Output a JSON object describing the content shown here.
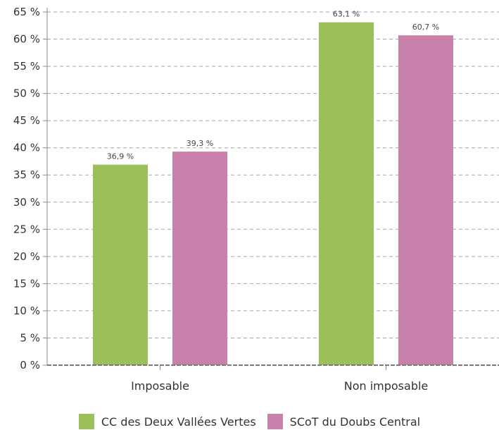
{
  "chart_data": {
    "type": "bar",
    "categories": [
      "Imposable",
      "Non imposable"
    ],
    "series": [
      {
        "name": "CC des Deux Vallées Vertes",
        "values": [
          36.9,
          63.1
        ],
        "color": "#9bbf5b",
        "labels": [
          "36,9 %",
          "63,1 %"
        ]
      },
      {
        "name": "SCoT du Doubs Central",
        "values": [
          39.3,
          60.7
        ],
        "color": "#c781aa",
        "labels": [
          "39,3 %",
          "60,7 %"
        ]
      }
    ],
    "ylim": [
      0,
      65
    ],
    "yticks": [
      0,
      5,
      10,
      15,
      20,
      25,
      30,
      35,
      40,
      45,
      50,
      55,
      60,
      65
    ],
    "ytick_labels": [
      "0 %",
      "5 %",
      "10 %",
      "15 %",
      "20 %",
      "25 %",
      "30 %",
      "35 %",
      "40 %",
      "45 %",
      "50 %",
      "55 %",
      "60 %",
      "65 %"
    ],
    "grid": "dashed horizontal",
    "legend_position": "bottom",
    "title": "",
    "xlabel": "",
    "ylabel": ""
  }
}
